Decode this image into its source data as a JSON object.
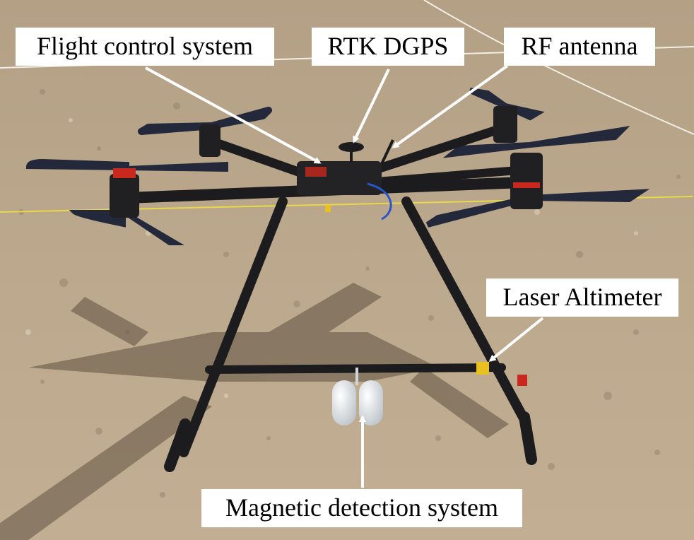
{
  "annotations": {
    "flight_control": "Flight control system",
    "rtk_dgps": "RTK DGPS",
    "rf_antenna": "RF antenna",
    "laser_altimeter": "Laser Altimeter",
    "magnetic_detection": "Magnetic detection system"
  },
  "colors": {
    "ground": "#b9a58a",
    "carbon_frame": "#1c1c1e",
    "propeller": "#23283a",
    "motor_accent": "#c8281e",
    "sensor_pod": "#e8ecef",
    "field_line": "#e8d84a",
    "callout_bg": "#ffffff",
    "arrow": "#ffffff"
  }
}
